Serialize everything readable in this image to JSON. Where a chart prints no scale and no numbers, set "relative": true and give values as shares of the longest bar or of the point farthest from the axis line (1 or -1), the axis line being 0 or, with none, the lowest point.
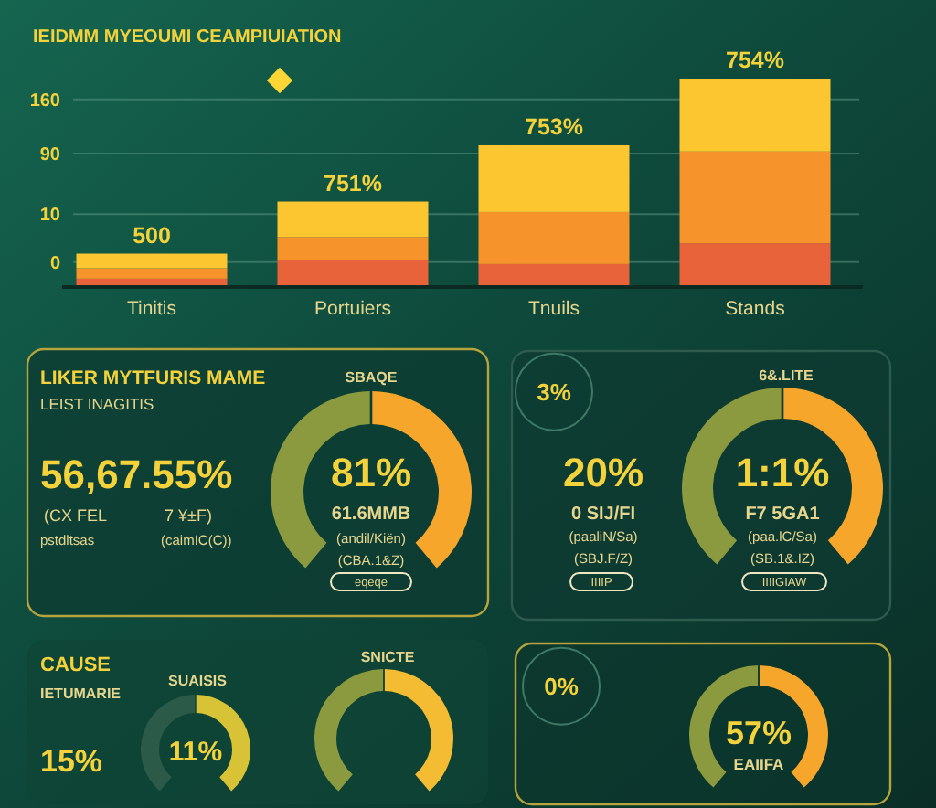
{
  "chart_data": [
    {
      "type": "bar",
      "title": "IEIDMM MYEOUMI CEAMPIUIATION",
      "categories": [
        "Tinitis",
        "Portuiers",
        "Tnuils",
        "Stands"
      ],
      "stacked": true,
      "relative": true,
      "series": [
        {
          "color": "#e8633a",
          "values": [
            0.04,
            0.13,
            0.11,
            0.21
          ]
        },
        {
          "color": "#f7932b",
          "values": [
            0.05,
            0.11,
            0.25,
            0.44
          ]
        },
        {
          "color": "#fcc630",
          "values": [
            0.07,
            0.17,
            0.32,
            0.35
          ]
        }
      ],
      "ref_lines": [
        {
          "axis": "y",
          "value": 0.12
        },
        {
          "axis": "y",
          "value": 0.35
        },
        {
          "axis": "y",
          "value": 0.64
        },
        {
          "axis": "y",
          "value": 0.9
        }
      ],
      "annotations": [
        {
          "text": "500",
          "x": "Tinitis",
          "y": 0.16
        },
        {
          "text": "751%",
          "x": "Portuiers",
          "y": 0.41
        },
        {
          "text": "753%",
          "x": "Tnuils",
          "y": 0.68
        },
        {
          "text": "754%",
          "x": "Stands",
          "y": 1
        },
        "0",
        "10",
        "90",
        "160"
      ]
    },
    {
      "type": "other",
      "title": "LIKER MYTFURIS MAME",
      "subtitle": "LEIST INAGITIS",
      "annotations": [
        "56,67.55%",
        "(CX FEL",
        "7 ¥±F)",
        "pstdltsas",
        "(caimIC(C))"
      ]
    },
    {
      "type": "donut",
      "title": "SBAQE",
      "categories": [
        null,
        null
      ],
      "values": [
        50,
        50
      ],
      "colors": [
        "#8b9a3e",
        "#f6a62a"
      ],
      "annotations": [
        "81%",
        "61.6MMB",
        "(andil/Kiën)",
        "(CBA.1&Z)",
        "eqeqe"
      ]
    },
    {
      "type": "other",
      "annotations": [
        "3%",
        "20%",
        "0 SIJ/FI",
        "(paaliN/Sa)",
        "(SBJ.F/Z)",
        "IIIIP"
      ]
    },
    {
      "type": "donut",
      "title": "6&.LITE",
      "categories": [
        null,
        null
      ],
      "values": [
        50,
        50
      ],
      "colors": [
        "#8b9a3e",
        "#f6a62a"
      ],
      "annotations": [
        "1:1%",
        "F7 5GA1",
        "(paa.lC/Sa)",
        "(SB.1&.IZ)",
        "IIIIGIAW"
      ]
    },
    {
      "type": "other",
      "title": "CAUSE",
      "subtitle": "IETUMARIE",
      "annotations": [
        "15%"
      ]
    },
    {
      "type": "donut",
      "title": "SUAISIS",
      "categories": [
        null,
        null
      ],
      "values": [
        50,
        50
      ],
      "colors": [
        "#2b5a48",
        "#d8c235"
      ],
      "annotations": [
        "11%"
      ]
    },
    {
      "type": "donut",
      "title": "SNICTE",
      "categories": [
        null,
        null
      ],
      "values": [
        50,
        50
      ],
      "colors": [
        "#8b9a3e",
        "#f4bc33"
      ]
    },
    {
      "type": "other",
      "annotations": [
        "0%"
      ]
    },
    {
      "type": "donut",
      "categories": [
        null,
        null
      ],
      "values": [
        50,
        50
      ],
      "colors": [
        "#8b9a3e",
        "#f6a62a"
      ],
      "annotations": [
        "57%",
        "EAIIFA"
      ]
    }
  ]
}
